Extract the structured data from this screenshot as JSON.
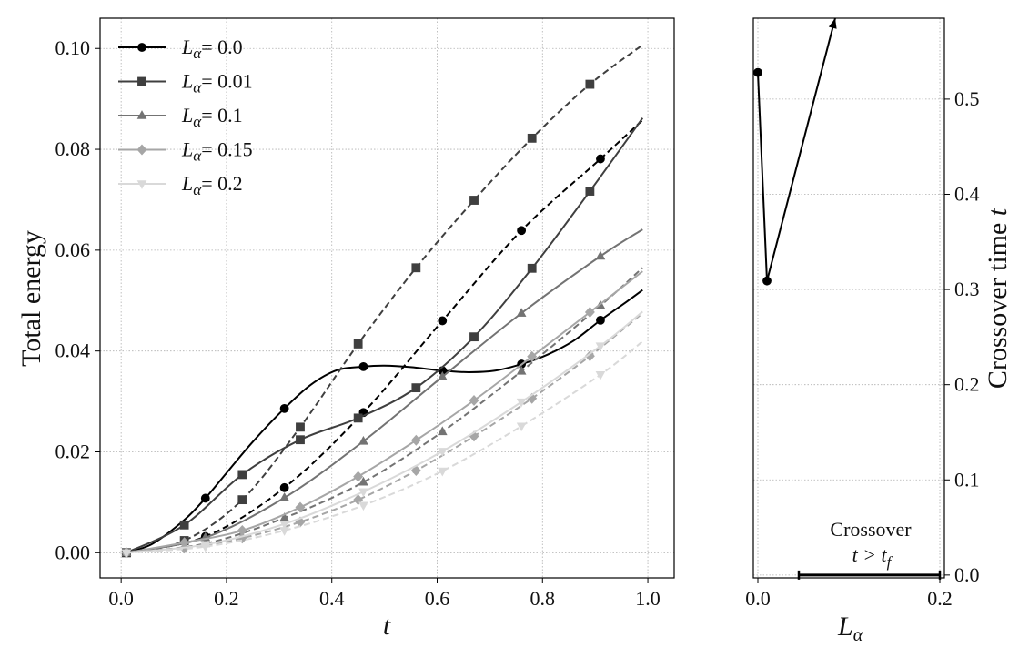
{
  "chart_data": [
    {
      "type": "line",
      "xlabel": "t",
      "ylabel": "Total energy",
      "xlim": [
        -0.04,
        1.05
      ],
      "ylim": [
        -0.005,
        0.106
      ],
      "xticks": [
        0.0,
        0.2,
        0.4,
        0.6,
        0.8,
        1.0
      ],
      "xtick_labels": [
        "0.0",
        "0.2",
        "0.4",
        "0.6",
        "0.8",
        "1.0"
      ],
      "yticks": [
        0.0,
        0.02,
        0.04,
        0.06,
        0.08,
        0.1
      ],
      "ytick_labels": [
        "0.00",
        "0.02",
        "0.04",
        "0.06",
        "0.08",
        "0.10"
      ],
      "grid": true,
      "legend_position": "top-left",
      "legend": [
        {
          "label_main": "L",
          "label_sub": "α",
          "label_value": "= 0.0",
          "color": "#000000",
          "marker": "circle"
        },
        {
          "label_main": "L",
          "label_sub": "α",
          "label_value": "= 0.01",
          "color": "#3f3f3f",
          "marker": "square"
        },
        {
          "label_main": "L",
          "label_sub": "α",
          "label_value": "= 0.1",
          "color": "#737373",
          "marker": "triangle-up"
        },
        {
          "label_main": "L",
          "label_sub": "α",
          "label_value": "= 0.15",
          "color": "#a6a6a6",
          "marker": "diamond"
        },
        {
          "label_main": "L",
          "label_sub": "α",
          "label_value": "= 0.2",
          "color": "#d9d9d9",
          "marker": "triangle-down"
        }
      ],
      "series": [
        {
          "name": "L_alpha=0.0 solid",
          "color": "#000000",
          "marker": "circle",
          "dash": false,
          "x": [
            0.01,
            0.06,
            0.12,
            0.16,
            0.2,
            0.25,
            0.31,
            0.36,
            0.41,
            0.46,
            0.5,
            0.55,
            0.61,
            0.66,
            0.71,
            0.76,
            0.81,
            0.86,
            0.91,
            0.96,
            0.99
          ],
          "y": [
            0.0,
            0.0018,
            0.0065,
            0.0108,
            0.0158,
            0.022,
            0.0286,
            0.0333,
            0.0362,
            0.0369,
            0.0371,
            0.0368,
            0.0361,
            0.0358,
            0.0361,
            0.0374,
            0.0393,
            0.0421,
            0.0461,
            0.0498,
            0.0521
          ],
          "marker_x": [
            0.01,
            0.16,
            0.31,
            0.46,
            0.61,
            0.76,
            0.91
          ],
          "marker_y": [
            0.0,
            0.0108,
            0.0286,
            0.0369,
            0.0361,
            0.0374,
            0.0461
          ]
        },
        {
          "name": "L_alpha=0.0 dashed",
          "color": "#000000",
          "marker": "circle",
          "dash": true,
          "x": [
            0.01,
            0.16,
            0.31,
            0.46,
            0.61,
            0.76,
            0.91,
            0.99
          ],
          "y": [
            0.0,
            0.0032,
            0.0129,
            0.0278,
            0.046,
            0.0639,
            0.0781,
            0.0858
          ],
          "marker_x": [
            0.01,
            0.16,
            0.31,
            0.46,
            0.61,
            0.76,
            0.91
          ],
          "marker_y": [
            0.0,
            0.0032,
            0.0129,
            0.0278,
            0.046,
            0.0639,
            0.0781
          ]
        },
        {
          "name": "L_alpha=0.01 solid",
          "color": "#3f3f3f",
          "marker": "square",
          "dash": false,
          "x": [
            0.01,
            0.12,
            0.23,
            0.34,
            0.45,
            0.56,
            0.67,
            0.78,
            0.89,
            0.99
          ],
          "y": [
            0.0,
            0.0055,
            0.0155,
            0.0224,
            0.0267,
            0.0327,
            0.0428,
            0.0564,
            0.0717,
            0.0862
          ],
          "marker_x": [
            0.01,
            0.12,
            0.23,
            0.34,
            0.45,
            0.56,
            0.67,
            0.78,
            0.89
          ],
          "marker_y": [
            0.0,
            0.0055,
            0.0155,
            0.0224,
            0.0267,
            0.0327,
            0.0428,
            0.0564,
            0.0717
          ]
        },
        {
          "name": "L_alpha=0.01 dashed",
          "color": "#3f3f3f",
          "marker": "square",
          "dash": true,
          "x": [
            0.01,
            0.12,
            0.23,
            0.34,
            0.45,
            0.56,
            0.67,
            0.78,
            0.89,
            0.99
          ],
          "y": [
            0.0,
            0.0024,
            0.0105,
            0.0249,
            0.0414,
            0.0565,
            0.0699,
            0.0822,
            0.0929,
            0.1007
          ],
          "marker_x": [
            0.01,
            0.12,
            0.23,
            0.34,
            0.45,
            0.56,
            0.67,
            0.78,
            0.89
          ],
          "marker_y": [
            0.0,
            0.0024,
            0.0105,
            0.0249,
            0.0414,
            0.0565,
            0.0699,
            0.0822,
            0.0929
          ]
        },
        {
          "name": "L_alpha=0.1 solid",
          "color": "#737373",
          "marker": "triangle-up",
          "dash": false,
          "x": [
            0.01,
            0.16,
            0.31,
            0.46,
            0.61,
            0.76,
            0.91,
            0.99
          ],
          "y": [
            0.0,
            0.003,
            0.0109,
            0.0221,
            0.0349,
            0.0475,
            0.0588,
            0.0641
          ],
          "marker_x": [
            0.01,
            0.16,
            0.31,
            0.46,
            0.61,
            0.76,
            0.91
          ],
          "marker_y": [
            0.0,
            0.003,
            0.0109,
            0.0221,
            0.0349,
            0.0475,
            0.0588
          ]
        },
        {
          "name": "L_alpha=0.1 dashed",
          "color": "#737373",
          "marker": "triangle-up",
          "dash": true,
          "x": [
            0.01,
            0.16,
            0.31,
            0.46,
            0.61,
            0.76,
            0.91,
            0.99
          ],
          "y": [
            0.0,
            0.0018,
            0.0069,
            0.014,
            0.024,
            0.036,
            0.049,
            0.0565
          ],
          "marker_x": [
            0.01,
            0.16,
            0.31,
            0.46,
            0.61,
            0.76,
            0.91
          ],
          "marker_y": [
            0.0,
            0.0018,
            0.0069,
            0.014,
            0.024,
            0.036,
            0.049
          ]
        },
        {
          "name": "L_alpha=0.15 solid",
          "color": "#a6a6a6",
          "marker": "diamond",
          "dash": false,
          "x": [
            0.01,
            0.12,
            0.23,
            0.34,
            0.45,
            0.56,
            0.67,
            0.78,
            0.89,
            0.99
          ],
          "y": [
            0.0,
            0.002,
            0.0044,
            0.009,
            0.0151,
            0.0223,
            0.0302,
            0.0389,
            0.0477,
            0.0558
          ],
          "marker_x": [
            0.01,
            0.12,
            0.23,
            0.34,
            0.45,
            0.56,
            0.67,
            0.78,
            0.89
          ],
          "marker_y": [
            0.0,
            0.002,
            0.0044,
            0.009,
            0.0151,
            0.0223,
            0.0302,
            0.0389,
            0.0477
          ]
        },
        {
          "name": "L_alpha=0.15 dashed",
          "color": "#a6a6a6",
          "marker": "diamond",
          "dash": true,
          "x": [
            0.01,
            0.12,
            0.23,
            0.34,
            0.45,
            0.56,
            0.67,
            0.78,
            0.89,
            0.99
          ],
          "y": [
            0.0,
            0.0009,
            0.0029,
            0.0061,
            0.0105,
            0.0163,
            0.0231,
            0.0306,
            0.039,
            0.0475
          ],
          "marker_x": [
            0.01,
            0.12,
            0.23,
            0.34,
            0.45,
            0.56,
            0.67,
            0.78,
            0.89
          ],
          "marker_y": [
            0.0,
            0.0009,
            0.0029,
            0.0061,
            0.0105,
            0.0163,
            0.0231,
            0.0306,
            0.039
          ]
        },
        {
          "name": "L_alpha=0.2 solid",
          "color": "#d9d9d9",
          "marker": "triangle-down",
          "dash": false,
          "x": [
            0.01,
            0.16,
            0.31,
            0.46,
            0.61,
            0.76,
            0.91,
            0.99
          ],
          "y": [
            0.0,
            0.0016,
            0.0057,
            0.0121,
            0.0201,
            0.0299,
            0.041,
            0.0478
          ],
          "marker_x": [
            0.01,
            0.16,
            0.31,
            0.46,
            0.61,
            0.76,
            0.91
          ],
          "marker_y": [
            0.0,
            0.0016,
            0.0057,
            0.0121,
            0.0201,
            0.0299,
            0.041
          ]
        },
        {
          "name": "L_alpha=0.2 dashed",
          "color": "#d9d9d9",
          "marker": "triangle-down",
          "dash": true,
          "x": [
            0.01,
            0.16,
            0.31,
            0.46,
            0.61,
            0.76,
            0.91,
            0.99
          ],
          "y": [
            0.0,
            0.0012,
            0.0044,
            0.0094,
            0.0162,
            0.0251,
            0.0353,
            0.0419
          ],
          "marker_x": [
            0.01,
            0.16,
            0.31,
            0.46,
            0.61,
            0.76,
            0.91
          ],
          "marker_y": [
            0.0,
            0.0012,
            0.0044,
            0.0094,
            0.0162,
            0.0251,
            0.0353
          ]
        }
      ]
    },
    {
      "type": "line",
      "xlabel_main": "L",
      "xlabel_sub": "α",
      "ylabel": "Crossover time t",
      "ylabel_text": "Crossover time ",
      "ylabel_var": "t",
      "xlim": [
        -0.005,
        0.205
      ],
      "ylim": [
        -0.003,
        0.585
      ],
      "xticks": [
        0.0,
        0.2
      ],
      "xtick_labels": [
        "0.0",
        "0.2"
      ],
      "yticks": [
        0.0,
        0.1,
        0.2,
        0.3,
        0.4,
        0.5
      ],
      "ytick_labels": [
        "0.0",
        "0.1",
        "0.2",
        "0.3",
        "0.4",
        "0.5"
      ],
      "grid": true,
      "series": [
        {
          "name": "crossover",
          "color": "#000000",
          "marker": "circle",
          "x": [
            0.0,
            0.01
          ],
          "y": [
            0.528,
            0.309
          ]
        }
      ],
      "arrow": {
        "from": [
          0.01,
          0.309
        ],
        "to": [
          0.085,
          0.585
        ]
      },
      "range_bar": {
        "x0": 0.045,
        "x1": 0.2,
        "y": 0.0
      },
      "annotation": {
        "line1": "Crossover",
        "line2_main": "t > t",
        "line2_sub": "f",
        "x": 0.125,
        "y": 0.045
      }
    }
  ]
}
